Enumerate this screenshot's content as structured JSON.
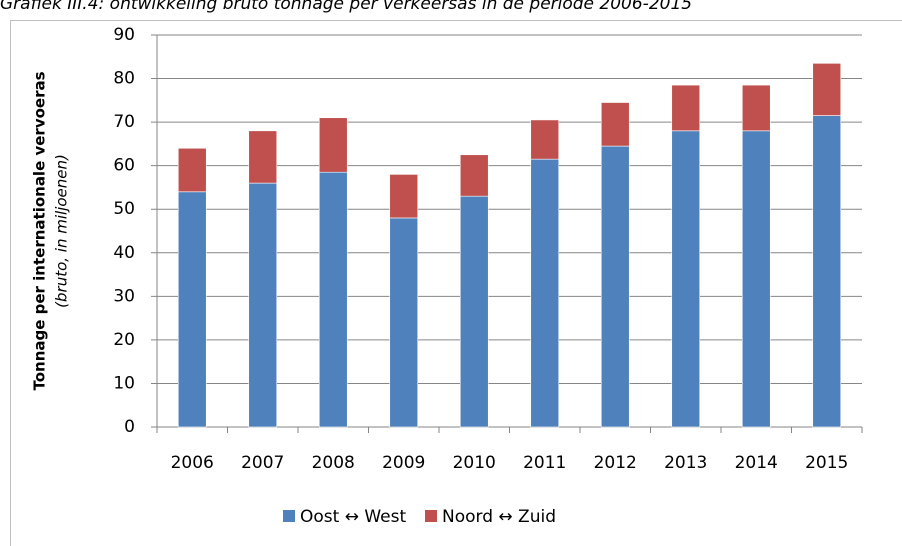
{
  "chart_data": {
    "type": "stacked_bar",
    "title": "Grafiek III.4: ontwikkeling bruto tonnage per verkeersas in de periode 2006-2015",
    "y_label": "Tonnage  per internationale vervoeras",
    "y_sublabel": "(bruto, in miljoenen)",
    "categories": [
      "2006",
      "2007",
      "2008",
      "2009",
      "2010",
      "2011",
      "2012",
      "2013",
      "2014",
      "2015"
    ],
    "series": [
      {
        "name": "Oost ↔ West",
        "color": "#4f81bd",
        "values": [
          54,
          56,
          58.5,
          48,
          53,
          61.5,
          64.5,
          68,
          68,
          71.5
        ]
      },
      {
        "name": "Noord ↔ Zuid",
        "color": "#c0504d",
        "values": [
          10,
          12,
          12.5,
          10,
          9.5,
          9,
          10,
          10.5,
          10.5,
          12
        ]
      }
    ],
    "ylim": [
      0,
      90
    ],
    "yticks": [
      0,
      10,
      20,
      30,
      40,
      50,
      60,
      70,
      80,
      90
    ],
    "grid": true
  }
}
